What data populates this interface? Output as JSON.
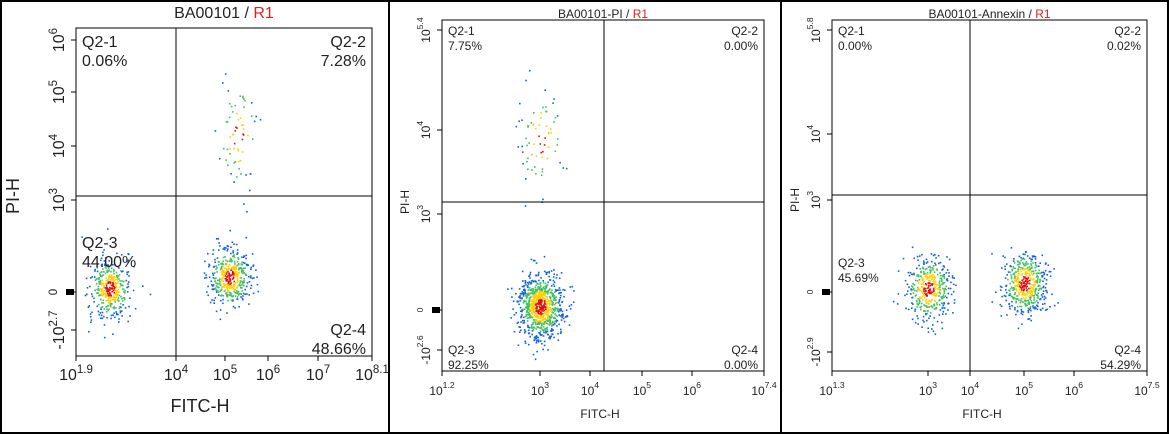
{
  "chart_data": [
    {
      "type": "scatter",
      "title_main": "BA00101",
      "title_sep": " / ",
      "title_region": "R1",
      "xlabel": "FITC-H",
      "ylabel": "PI-H",
      "x_ticks": [
        {
          "base": "10",
          "exp": "1.9"
        },
        {
          "base": "10",
          "exp": "4"
        },
        {
          "base": "10",
          "exp": "5"
        },
        {
          "base": "10",
          "exp": "6"
        },
        {
          "base": "10",
          "exp": "7"
        },
        {
          "base": "10",
          "exp": "8.1"
        }
      ],
      "y_ticks": [
        {
          "base": "10",
          "exp": "6"
        },
        {
          "base": "10",
          "exp": "5"
        },
        {
          "base": "10",
          "exp": "4"
        },
        {
          "base": "10",
          "exp": "3"
        },
        {
          "base": "",
          "exp": "0"
        },
        {
          "base": "-10",
          "exp": "2.7"
        }
      ],
      "quadrants": [
        {
          "name": "Q2-1",
          "value": "0.06%",
          "pos": "top-left"
        },
        {
          "name": "Q2-2",
          "value": "7.28%",
          "pos": "top-right"
        },
        {
          "name": "Q2-3",
          "value": "44.00%",
          "pos": "bottom-left"
        },
        {
          "name": "Q2-4",
          "value": "48.66%",
          "pos": "bottom-right"
        }
      ],
      "gate_x_log": 4.0,
      "gate_y_log": 3.0,
      "populations": [
        {
          "x_log": 2.6,
          "y_log": 0,
          "density": "high",
          "percent": 44.0
        },
        {
          "x_log": 5.1,
          "y_log": 0.5,
          "density": "high",
          "percent": 48.66
        },
        {
          "x_log": 5.3,
          "y_log": 4.2,
          "density": "medium",
          "percent": 7.28
        }
      ]
    },
    {
      "type": "scatter",
      "title_main": "BA00101-PI",
      "title_sep": " / ",
      "title_region": "R1",
      "xlabel": "FITC-H",
      "ylabel": "PI-H",
      "x_ticks": [
        {
          "base": "10",
          "exp": "1.2"
        },
        {
          "base": "10",
          "exp": "3"
        },
        {
          "base": "10",
          "exp": "4"
        },
        {
          "base": "10",
          "exp": "5"
        },
        {
          "base": "10",
          "exp": "6"
        },
        {
          "base": "10",
          "exp": "7.4"
        }
      ],
      "y_ticks": [
        {
          "base": "10",
          "exp": "5.4"
        },
        {
          "base": "10",
          "exp": "4"
        },
        {
          "base": "10",
          "exp": "3"
        },
        {
          "base": "",
          "exp": "0"
        },
        {
          "base": "-10",
          "exp": "2.6"
        }
      ],
      "quadrants": [
        {
          "name": "Q2-1",
          "value": "7.75%",
          "pos": "top-left"
        },
        {
          "name": "Q2-2",
          "value": "0.00%",
          "pos": "top-right"
        },
        {
          "name": "Q2-3",
          "value": "92.25%",
          "pos": "bottom-left"
        },
        {
          "name": "Q2-4",
          "value": "0.00%",
          "pos": "bottom-right"
        }
      ],
      "gate_x_log": 3.7,
      "gate_y_log": 3.0,
      "populations": [
        {
          "x_log": 3.0,
          "y_log": 0,
          "density": "high",
          "percent": 92.25
        },
        {
          "x_log": 3.0,
          "y_log": 3.9,
          "density": "medium",
          "percent": 7.75
        }
      ]
    },
    {
      "type": "scatter",
      "title_main": "BA00101-Annexin",
      "title_sep": " / ",
      "title_region": "R1",
      "xlabel": "FITC-H",
      "ylabel": "PI-H",
      "x_ticks": [
        {
          "base": "10",
          "exp": "1.3"
        },
        {
          "base": "10",
          "exp": "3"
        },
        {
          "base": "10",
          "exp": "4"
        },
        {
          "base": "10",
          "exp": "5"
        },
        {
          "base": "10",
          "exp": "6"
        },
        {
          "base": "10",
          "exp": "7.5"
        }
      ],
      "y_ticks": [
        {
          "base": "10",
          "exp": "5.8"
        },
        {
          "base": "10",
          "exp": "4"
        },
        {
          "base": "10",
          "exp": "3"
        },
        {
          "base": "",
          "exp": "0"
        },
        {
          "base": "-10",
          "exp": "2.9"
        }
      ],
      "quadrants": [
        {
          "name": "Q2-1",
          "value": "0.00%",
          "pos": "top-left"
        },
        {
          "name": "Q2-2",
          "value": "0.02%",
          "pos": "top-right"
        },
        {
          "name": "Q2-3",
          "value": "45.69%",
          "pos": "bottom-left"
        },
        {
          "name": "Q2-4",
          "value": "54.29%",
          "pos": "bottom-right"
        }
      ],
      "gate_x_log": 3.9,
      "gate_y_log": 3.0,
      "populations": [
        {
          "x_log": 3.0,
          "y_log": 0,
          "density": "high",
          "percent": 45.69
        },
        {
          "x_log": 5.0,
          "y_log": 0.3,
          "density": "high",
          "percent": 54.29
        }
      ]
    }
  ],
  "colors": {
    "region_label": "#e02020",
    "gate_line": "#000000",
    "dense": "#e01010",
    "mid": "#ffd000",
    "low": "#1060e0"
  }
}
